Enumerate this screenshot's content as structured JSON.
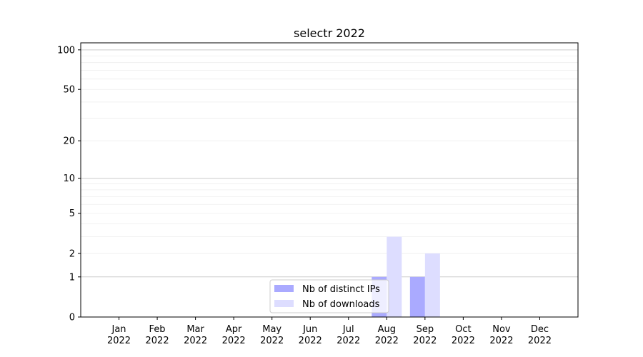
{
  "chart_data": {
    "type": "bar",
    "title": "selectr 2022",
    "xlabel": "",
    "ylabel": "",
    "categories": [
      "Jan\n2022",
      "Feb\n2022",
      "Mar\n2022",
      "Apr\n2022",
      "May\n2022",
      "Jun\n2022",
      "Jul\n2022",
      "Aug\n2022",
      "Sep\n2022",
      "Oct\n2022",
      "Nov\n2022",
      "Dec\n2022"
    ],
    "series": [
      {
        "name": "Nb of distinct IPs",
        "color": "#aaaaff",
        "values": [
          0,
          0,
          0,
          0,
          0,
          0,
          0,
          1,
          1,
          0,
          0,
          0
        ]
      },
      {
        "name": "Nb of downloads",
        "color": "#ddddff",
        "values": [
          0,
          0,
          0,
          0,
          0,
          0,
          0,
          3,
          2,
          0,
          0,
          0
        ]
      }
    ],
    "yscale": "log(1+y)",
    "ylim": [
      0,
      113
    ],
    "yticks": [
      0,
      1,
      2,
      5,
      10,
      20,
      50,
      100
    ],
    "grid": true,
    "legend": "bottom-center"
  }
}
